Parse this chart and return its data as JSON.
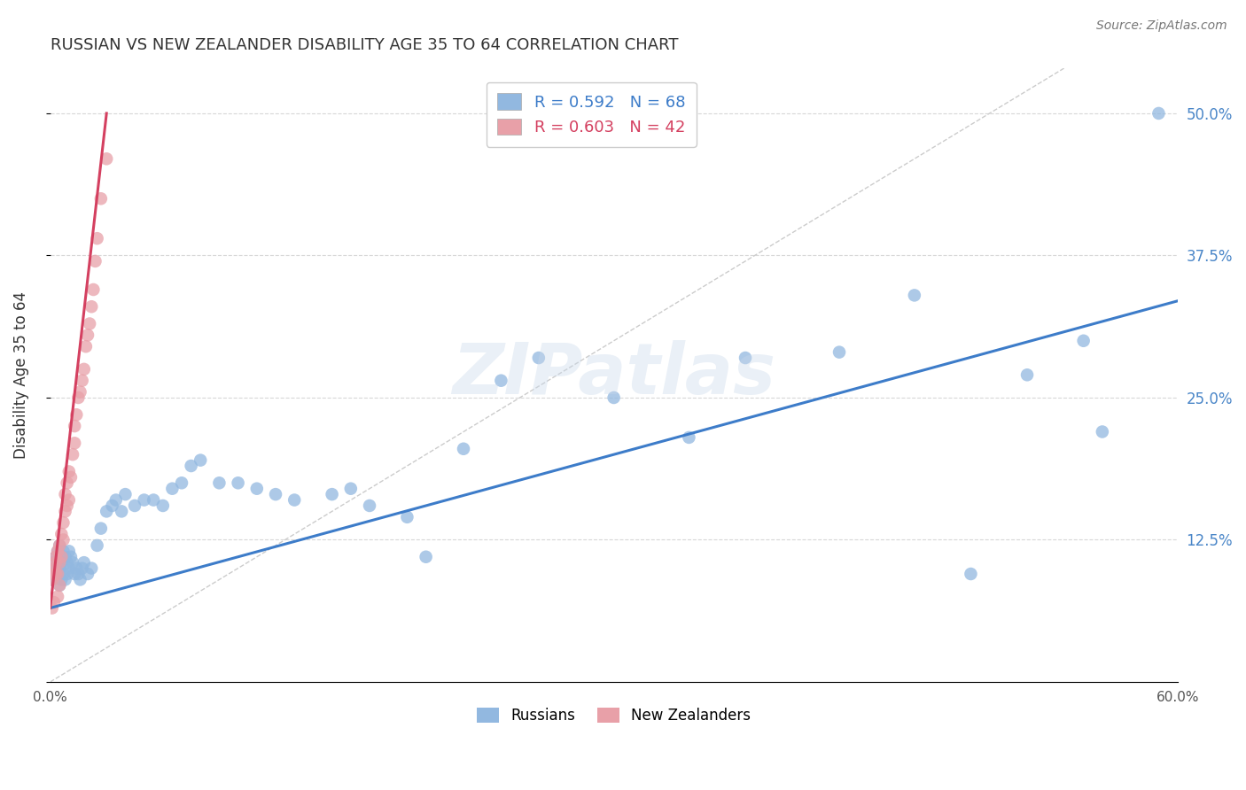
{
  "title": "RUSSIAN VS NEW ZEALANDER DISABILITY AGE 35 TO 64 CORRELATION CHART",
  "source": "Source: ZipAtlas.com",
  "ylabel": "Disability Age 35 to 64",
  "xlim": [
    0.0,
    0.6
  ],
  "ylim": [
    0.0,
    0.54
  ],
  "russian_R": 0.592,
  "russian_N": 68,
  "nz_R": 0.603,
  "nz_N": 42,
  "russian_color": "#92b8e0",
  "nz_color": "#e8a0a8",
  "russian_line_color": "#3d7cc9",
  "nz_line_color": "#d44060",
  "ref_line_color": "#cccccc",
  "background_color": "#ffffff",
  "grid_color": "#d8d8d8",
  "title_color": "#333333",
  "right_tick_color": "#4a86c8",
  "watermark": "ZIPatlas",
  "rus_x": [
    0.001,
    0.002,
    0.002,
    0.003,
    0.003,
    0.004,
    0.004,
    0.005,
    0.005,
    0.005,
    0.006,
    0.006,
    0.007,
    0.007,
    0.008,
    0.008,
    0.009,
    0.009,
    0.01,
    0.01,
    0.011,
    0.012,
    0.013,
    0.014,
    0.015,
    0.016,
    0.017,
    0.018,
    0.02,
    0.022,
    0.025,
    0.027,
    0.03,
    0.033,
    0.035,
    0.038,
    0.04,
    0.045,
    0.05,
    0.055,
    0.06,
    0.065,
    0.07,
    0.075,
    0.08,
    0.09,
    0.1,
    0.11,
    0.12,
    0.13,
    0.15,
    0.16,
    0.17,
    0.19,
    0.2,
    0.22,
    0.24,
    0.26,
    0.3,
    0.34,
    0.37,
    0.42,
    0.46,
    0.49,
    0.52,
    0.55,
    0.56,
    0.59
  ],
  "rus_y": [
    0.09,
    0.095,
    0.105,
    0.1,
    0.11,
    0.095,
    0.115,
    0.085,
    0.1,
    0.12,
    0.09,
    0.105,
    0.095,
    0.115,
    0.09,
    0.11,
    0.105,
    0.095,
    0.1,
    0.115,
    0.11,
    0.105,
    0.095,
    0.1,
    0.095,
    0.09,
    0.1,
    0.105,
    0.095,
    0.1,
    0.12,
    0.135,
    0.15,
    0.155,
    0.16,
    0.15,
    0.165,
    0.155,
    0.16,
    0.16,
    0.155,
    0.17,
    0.175,
    0.19,
    0.195,
    0.175,
    0.175,
    0.17,
    0.165,
    0.16,
    0.165,
    0.17,
    0.155,
    0.145,
    0.11,
    0.205,
    0.265,
    0.285,
    0.25,
    0.215,
    0.285,
    0.29,
    0.34,
    0.095,
    0.27,
    0.3,
    0.22,
    0.5
  ],
  "nz_x": [
    0.001,
    0.001,
    0.002,
    0.002,
    0.002,
    0.003,
    0.003,
    0.003,
    0.004,
    0.004,
    0.004,
    0.005,
    0.005,
    0.005,
    0.006,
    0.006,
    0.007,
    0.007,
    0.008,
    0.008,
    0.009,
    0.009,
    0.01,
    0.01,
    0.011,
    0.012,
    0.013,
    0.013,
    0.014,
    0.015,
    0.016,
    0.017,
    0.018,
    0.019,
    0.02,
    0.021,
    0.022,
    0.023,
    0.024,
    0.025,
    0.027,
    0.03
  ],
  "nz_y": [
    0.09,
    0.065,
    0.095,
    0.1,
    0.07,
    0.105,
    0.095,
    0.11,
    0.115,
    0.075,
    0.095,
    0.105,
    0.12,
    0.085,
    0.11,
    0.13,
    0.125,
    0.14,
    0.15,
    0.165,
    0.155,
    0.175,
    0.16,
    0.185,
    0.18,
    0.2,
    0.21,
    0.225,
    0.235,
    0.25,
    0.255,
    0.265,
    0.275,
    0.295,
    0.305,
    0.315,
    0.33,
    0.345,
    0.37,
    0.39,
    0.425,
    0.46
  ],
  "nz_line_x_start": 0.0,
  "nz_line_x_end": 0.03,
  "nz_line_y_start": 0.065,
  "nz_line_y_end": 0.5,
  "rus_line_x_start": 0.0,
  "rus_line_x_end": 0.6,
  "rus_line_y_start": 0.065,
  "rus_line_y_end": 0.335
}
